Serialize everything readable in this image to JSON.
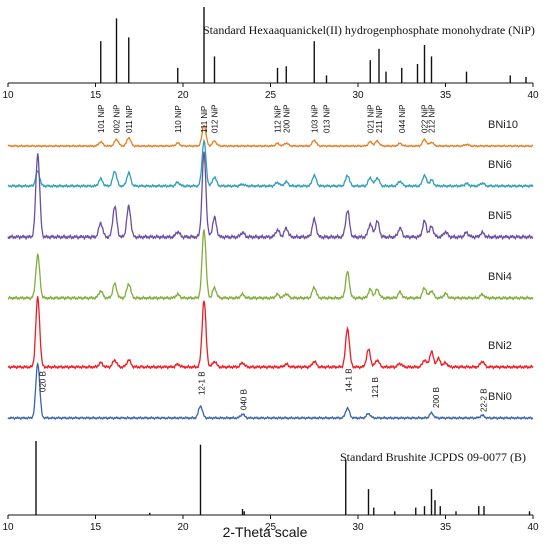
{
  "chart_data": {
    "type": "line",
    "xlabel": "2-Theta scale",
    "xlim": [
      10,
      40
    ],
    "x_ticks": [
      10,
      15,
      20,
      25,
      30,
      35,
      40
    ],
    "top_reference": {
      "name": "Standard Hexaaquanickel(II) hydrogenphosphate monohydrate (NiP)",
      "peaks": [
        {
          "x": 15.3,
          "h": 0.55
        },
        {
          "x": 16.2,
          "h": 0.85
        },
        {
          "x": 16.9,
          "h": 0.6
        },
        {
          "x": 19.7,
          "h": 0.2
        },
        {
          "x": 21.2,
          "h": 1.0
        },
        {
          "x": 21.8,
          "h": 0.35
        },
        {
          "x": 25.4,
          "h": 0.2
        },
        {
          "x": 25.9,
          "h": 0.22
        },
        {
          "x": 27.5,
          "h": 0.55
        },
        {
          "x": 28.2,
          "h": 0.1
        },
        {
          "x": 30.7,
          "h": 0.3
        },
        {
          "x": 31.2,
          "h": 0.45
        },
        {
          "x": 31.6,
          "h": 0.15
        },
        {
          "x": 32.5,
          "h": 0.2
        },
        {
          "x": 33.4,
          "h": 0.25
        },
        {
          "x": 33.8,
          "h": 0.5
        },
        {
          "x": 34.2,
          "h": 0.35
        },
        {
          "x": 36.2,
          "h": 0.15
        },
        {
          "x": 38.7,
          "h": 0.1
        },
        {
          "x": 39.6,
          "h": 0.08
        }
      ]
    },
    "bottom_reference": {
      "name": "Standard Brushite JCPDS 09-0077 (B)",
      "peaks": [
        {
          "x": 11.6,
          "h": 1.0
        },
        {
          "x": 18.1,
          "h": 0.03
        },
        {
          "x": 21.0,
          "h": 0.95
        },
        {
          "x": 23.4,
          "h": 0.08
        },
        {
          "x": 23.5,
          "h": 0.05
        },
        {
          "x": 29.3,
          "h": 0.75
        },
        {
          "x": 30.6,
          "h": 0.35
        },
        {
          "x": 30.9,
          "h": 0.1
        },
        {
          "x": 32.1,
          "h": 0.05
        },
        {
          "x": 33.3,
          "h": 0.1
        },
        {
          "x": 33.8,
          "h": 0.12
        },
        {
          "x": 34.2,
          "h": 0.35
        },
        {
          "x": 34.4,
          "h": 0.2
        },
        {
          "x": 34.7,
          "h": 0.12
        },
        {
          "x": 35.6,
          "h": 0.05
        },
        {
          "x": 36.9,
          "h": 0.12
        },
        {
          "x": 37.2,
          "h": 0.12
        },
        {
          "x": 39.8,
          "h": 0.05
        }
      ]
    },
    "series": [
      {
        "name": "BNi10",
        "color": "#e67e22",
        "peaks": [
          [
            15.3,
            0.1
          ],
          [
            16.2,
            0.16
          ],
          [
            16.9,
            0.2
          ],
          [
            19.7,
            0.07
          ],
          [
            21.2,
            0.5
          ],
          [
            21.8,
            0.12
          ],
          [
            25.4,
            0.06
          ],
          [
            25.9,
            0.07
          ],
          [
            27.5,
            0.14
          ],
          [
            30.7,
            0.1
          ],
          [
            31.1,
            0.12
          ],
          [
            32.4,
            0.06
          ],
          [
            33.8,
            0.16
          ],
          [
            34.2,
            0.09
          ],
          [
            36.2,
            0.04
          ]
        ]
      },
      {
        "name": "BNi6",
        "color": "#2e9fb5",
        "peaks": [
          [
            11.7,
            0.25
          ],
          [
            15.3,
            0.12
          ],
          [
            16.1,
            0.25
          ],
          [
            16.9,
            0.22
          ],
          [
            19.7,
            0.06
          ],
          [
            21.2,
            0.75
          ],
          [
            21.8,
            0.15
          ],
          [
            23.4,
            0.03
          ],
          [
            25.4,
            0.06
          ],
          [
            25.9,
            0.07
          ],
          [
            27.5,
            0.18
          ],
          [
            29.4,
            0.18
          ],
          [
            30.7,
            0.14
          ],
          [
            31.1,
            0.14
          ],
          [
            32.4,
            0.08
          ],
          [
            33.8,
            0.18
          ],
          [
            34.2,
            0.1
          ],
          [
            36.2,
            0.04
          ],
          [
            37.1,
            0.05
          ]
        ]
      },
      {
        "name": "BNi5",
        "color": "#6a4ea1",
        "peaks": [
          [
            11.7,
            0.95
          ],
          [
            15.3,
            0.16
          ],
          [
            16.1,
            0.35
          ],
          [
            16.9,
            0.35
          ],
          [
            19.7,
            0.06
          ],
          [
            21.2,
            0.95
          ],
          [
            21.8,
            0.22
          ],
          [
            23.4,
            0.05
          ],
          [
            25.4,
            0.08
          ],
          [
            25.9,
            0.1
          ],
          [
            27.5,
            0.2
          ],
          [
            29.4,
            0.3
          ],
          [
            30.7,
            0.15
          ],
          [
            31.1,
            0.18
          ],
          [
            32.4,
            0.1
          ],
          [
            33.8,
            0.18
          ],
          [
            34.2,
            0.12
          ],
          [
            35.0,
            0.06
          ],
          [
            36.2,
            0.05
          ],
          [
            37.1,
            0.05
          ]
        ]
      },
      {
        "name": "BNi4",
        "color": "#82ad3d",
        "peaks": [
          [
            11.7,
            0.6
          ],
          [
            15.3,
            0.1
          ],
          [
            16.1,
            0.2
          ],
          [
            16.9,
            0.2
          ],
          [
            19.7,
            0.05
          ],
          [
            21.2,
            0.95
          ],
          [
            21.8,
            0.14
          ],
          [
            23.4,
            0.05
          ],
          [
            25.4,
            0.05
          ],
          [
            25.9,
            0.06
          ],
          [
            27.5,
            0.15
          ],
          [
            29.4,
            0.36
          ],
          [
            30.7,
            0.12
          ],
          [
            31.1,
            0.12
          ],
          [
            32.4,
            0.08
          ],
          [
            33.8,
            0.14
          ],
          [
            34.2,
            0.1
          ],
          [
            35.0,
            0.06
          ],
          [
            37.1,
            0.05
          ]
        ]
      },
      {
        "name": "BNi2",
        "color": "#ee1c24",
        "peaks": [
          [
            11.7,
            1.0
          ],
          [
            15.3,
            0.06
          ],
          [
            16.1,
            0.1
          ],
          [
            16.9,
            0.1
          ],
          [
            19.7,
            0.04
          ],
          [
            21.2,
            0.95
          ],
          [
            21.8,
            0.08
          ],
          [
            23.4,
            0.06
          ],
          [
            25.9,
            0.04
          ],
          [
            27.5,
            0.08
          ],
          [
            29.4,
            0.55
          ],
          [
            30.6,
            0.25
          ],
          [
            31.1,
            0.1
          ],
          [
            32.4,
            0.05
          ],
          [
            33.8,
            0.1
          ],
          [
            34.2,
            0.22
          ],
          [
            34.6,
            0.12
          ],
          [
            35.0,
            0.06
          ],
          [
            37.1,
            0.08
          ]
        ]
      },
      {
        "name": "BNi0",
        "color": "#3b64b0",
        "peaks": [
          [
            11.7,
            1.0
          ],
          [
            21.0,
            0.22
          ],
          [
            23.4,
            0.07
          ],
          [
            29.4,
            0.18
          ],
          [
            30.6,
            0.08
          ],
          [
            34.2,
            0.09
          ],
          [
            37.1,
            0.05
          ]
        ]
      }
    ],
    "nip_annotations": [
      {
        "x": 15.3,
        "text": "101 NiP"
      },
      {
        "x": 16.2,
        "text": "002 NiP"
      },
      {
        "x": 16.9,
        "text": "011 NiP"
      },
      {
        "x": 19.7,
        "text": "110 NiP"
      },
      {
        "x": 21.2,
        "text": "111 NiP"
      },
      {
        "x": 21.8,
        "text": "012 NiP"
      },
      {
        "x": 25.4,
        "text": "112 NiP"
      },
      {
        "x": 25.9,
        "text": "200 NiP"
      },
      {
        "x": 27.5,
        "text": "103 NiP"
      },
      {
        "x": 28.2,
        "text": "013 NiP"
      },
      {
        "x": 30.7,
        "text": "021 NiP"
      },
      {
        "x": 31.2,
        "text": "211 NiP"
      },
      {
        "x": 32.5,
        "text": "044 NiP"
      },
      {
        "x": 33.8,
        "text": "022 NiP"
      },
      {
        "x": 34.2,
        "text": "212 NiP"
      }
    ],
    "b_annotations": [
      {
        "x": 11.9,
        "text": "020 B"
      },
      {
        "x": 21.0,
        "text": "12-1 B"
      },
      {
        "x": 23.4,
        "text": "040 B"
      },
      {
        "x": 29.4,
        "text": "14-1 B"
      },
      {
        "x": 30.9,
        "text": "121 B"
      },
      {
        "x": 34.4,
        "text": "200 B"
      },
      {
        "x": 37.1,
        "text": "22-2 B"
      }
    ]
  }
}
